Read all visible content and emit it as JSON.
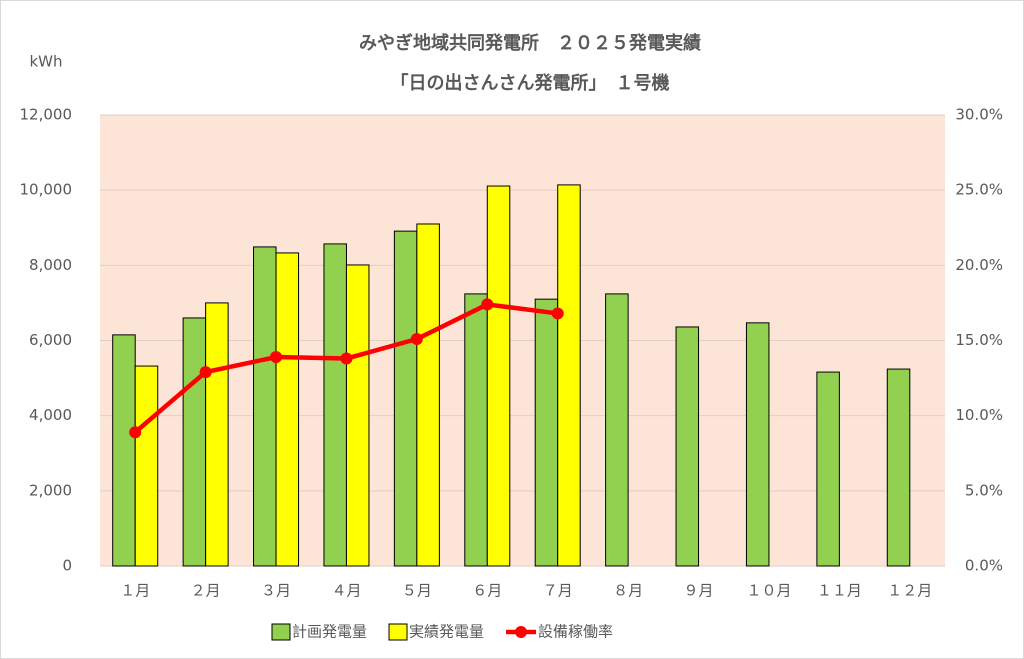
{
  "chart_data": {
    "type": "bar",
    "title": "みやぎ地域共同発電所　２０２５発電実績",
    "subtitle": "「日の出さんさん発電所」　１号機",
    "y_label": "kWh",
    "categories": [
      "１月",
      "２月",
      "３月",
      "４月",
      "５月",
      "６月",
      "７月",
      "８月",
      "９月",
      "１０月",
      "１１月",
      "１２月"
    ],
    "series": [
      {
        "name": "計画発電量",
        "color": "#92d050",
        "type": "bar",
        "values": [
          6150,
          6600,
          8490,
          8570,
          8910,
          7240,
          7100,
          7240,
          6360,
          6470,
          5160,
          5240
        ]
      },
      {
        "name": "実績発電量",
        "color": "#ffff00",
        "type": "bar",
        "values": [
          5320,
          7000,
          8330,
          8010,
          9100,
          10110,
          10140,
          null,
          null,
          null,
          null,
          null
        ]
      },
      {
        "name": "設備稼働率",
        "color": "#ff0000",
        "type": "line",
        "axis": "y2",
        "values": [
          8.9,
          12.9,
          13.9,
          13.8,
          15.1,
          17.4,
          16.8,
          null,
          null,
          null,
          null,
          null
        ]
      }
    ],
    "ylim": [
      0,
      12000
    ],
    "yticks": [
      0,
      {
        "value": 2000,
        "label": "2,000"
      },
      {
        "value": 4000,
        "label": "4,000"
      },
      {
        "value": 6000,
        "label": "6,000"
      },
      {
        "value": 8000,
        "label": "8,000"
      },
      {
        "value": 10000,
        "label": "10,000"
      },
      {
        "value": 12000,
        "label": "12,000"
      }
    ],
    "y2lim": [
      0,
      30
    ],
    "y2ticks": [
      {
        "value": 0,
        "label": "0.0%"
      },
      {
        "value": 5,
        "label": "5.0%"
      },
      {
        "value": 10,
        "label": "10.0%"
      },
      {
        "value": 15,
        "label": "15.0%"
      },
      {
        "value": 20,
        "label": "20.0%"
      },
      {
        "value": 25,
        "label": "25.0%"
      },
      {
        "value": 30,
        "label": "30.0%"
      }
    ],
    "grid": true,
    "plot_background": "#fce4d6",
    "legend": "bottom"
  }
}
